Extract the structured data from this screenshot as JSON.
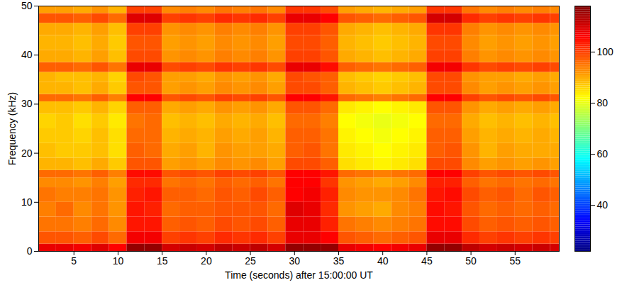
{
  "chart_data": {
    "type": "heatmap",
    "x_label": "Time (seconds) after 15:00:00 UT",
    "y_label": "Frequency (kHz)",
    "xlim": [
      1,
      60
    ],
    "xticks": [
      5,
      10,
      15,
      20,
      25,
      30,
      35,
      40,
      45,
      50,
      55
    ],
    "ylim": [
      0,
      50
    ],
    "yticks": [
      0,
      10,
      20,
      30,
      40,
      50
    ],
    "color": "jet",
    "time_bins": [
      1,
      3,
      5,
      7,
      9,
      11,
      13,
      15,
      17,
      19,
      21,
      23,
      25,
      27,
      29,
      31,
      33,
      35,
      37,
      39,
      41,
      43,
      45,
      47,
      49,
      51,
      53,
      55,
      57,
      59,
      60
    ],
    "frequency_bins": [
      0,
      1.5,
      4,
      7,
      10,
      13,
      15,
      16.5,
      19,
      22,
      25,
      28,
      30.5,
      32,
      34.5,
      36.5,
      38.5,
      41,
      44,
      46.5,
      48.5,
      50
    ],
    "values": [
      [
        108,
        108,
        107,
        109,
        106,
        116,
        116,
        110,
        111,
        110,
        112,
        111,
        112,
        110,
        116,
        116,
        116,
        108,
        107,
        106,
        107,
        108,
        116,
        116,
        112,
        110,
        111,
        110,
        111,
        110
      ],
      [
        98,
        98,
        97,
        99,
        96,
        107,
        107,
        100,
        101,
        100,
        102,
        101,
        102,
        100,
        108,
        108,
        106,
        98,
        97,
        96,
        97,
        98,
        108,
        108,
        102,
        100,
        101,
        100,
        101,
        100
      ],
      [
        95,
        95,
        94,
        96,
        93,
        104,
        104,
        97,
        98,
        97,
        99,
        98,
        99,
        97,
        108,
        108,
        103,
        95,
        94,
        93,
        94,
        95,
        105,
        105,
        99,
        97,
        98,
        97,
        98,
        97
      ],
      [
        94,
        96,
        93,
        95,
        92,
        104,
        103,
        96,
        97,
        97,
        98,
        98,
        98,
        96,
        109,
        108,
        102,
        92,
        91,
        90,
        93,
        94,
        105,
        104,
        98,
        96,
        97,
        96,
        97,
        96
      ],
      [
        95,
        94,
        94,
        95,
        92,
        103,
        104,
        97,
        97,
        96,
        98,
        97,
        99,
        97,
        106,
        107,
        103,
        93,
        92,
        92,
        93,
        95,
        104,
        105,
        99,
        97,
        98,
        96,
        98,
        97
      ],
      [
        93,
        93,
        92,
        94,
        91,
        102,
        102,
        95,
        96,
        95,
        97,
        96,
        97,
        95,
        106,
        106,
        101,
        92,
        91,
        90,
        91,
        93,
        103,
        103,
        97,
        95,
        96,
        95,
        96,
        95
      ],
      [
        96,
        96,
        95,
        97,
        94,
        105,
        105,
        98,
        99,
        98,
        100,
        99,
        100,
        98,
        106,
        106,
        104,
        96,
        95,
        94,
        95,
        96,
        106,
        106,
        100,
        98,
        99,
        98,
        99,
        98
      ],
      [
        89,
        89,
        88,
        90,
        87,
        98,
        98,
        91,
        92,
        91,
        93,
        92,
        93,
        91,
        99,
        99,
        97,
        85,
        84,
        83,
        84,
        85,
        99,
        99,
        93,
        91,
        92,
        91,
        92,
        91
      ],
      [
        88,
        87,
        87,
        88,
        85,
        97,
        96,
        90,
        91,
        89,
        92,
        91,
        91,
        90,
        97,
        98,
        95,
        84,
        83,
        82,
        83,
        84,
        97,
        98,
        92,
        89,
        91,
        90,
        90,
        90
      ],
      [
        87,
        87,
        86,
        88,
        85,
        96,
        96,
        89,
        90,
        89,
        91,
        90,
        91,
        89,
        97,
        97,
        95,
        83,
        82,
        81,
        82,
        83,
        97,
        97,
        91,
        89,
        90,
        89,
        90,
        89
      ],
      [
        86,
        87,
        85,
        87,
        84,
        95,
        96,
        88,
        89,
        88,
        90,
        89,
        90,
        88,
        96,
        96,
        94,
        82,
        81,
        80,
        81,
        82,
        96,
        96,
        90,
        88,
        89,
        88,
        89,
        88
      ],
      [
        88,
        88,
        87,
        89,
        86,
        97,
        97,
        90,
        91,
        90,
        92,
        91,
        92,
        90,
        98,
        98,
        96,
        84,
        83,
        82,
        83,
        84,
        98,
        98,
        92,
        90,
        91,
        90,
        91,
        90
      ],
      [
        96,
        96,
        95,
        97,
        94,
        106,
        106,
        98,
        99,
        98,
        100,
        99,
        100,
        98,
        106,
        106,
        104,
        96,
        95,
        94,
        95,
        96,
        106,
        106,
        100,
        98,
        99,
        98,
        99,
        98
      ],
      [
        89,
        89,
        88,
        90,
        87,
        98,
        98,
        91,
        92,
        91,
        93,
        92,
        93,
        91,
        99,
        99,
        97,
        89,
        88,
        87,
        88,
        89,
        99,
        99,
        93,
        91,
        92,
        91,
        92,
        91
      ],
      [
        89,
        88,
        88,
        89,
        86,
        99,
        98,
        91,
        91,
        90,
        92,
        91,
        92,
        90,
        99,
        98,
        97,
        88,
        87,
        86,
        87,
        88,
        99,
        99,
        92,
        91,
        91,
        90,
        91,
        90
      ],
      [
        97,
        97,
        96,
        98,
        95,
        108,
        108,
        99,
        100,
        99,
        101,
        100,
        101,
        99,
        108,
        108,
        105,
        97,
        96,
        95,
        96,
        97,
        107,
        107,
        101,
        99,
        100,
        99,
        100,
        99
      ],
      [
        90,
        90,
        89,
        91,
        88,
        99,
        99,
        92,
        93,
        92,
        94,
        93,
        94,
        92,
        100,
        100,
        98,
        90,
        89,
        88,
        89,
        90,
        100,
        100,
        94,
        92,
        93,
        92,
        93,
        92
      ],
      [
        89,
        89,
        88,
        90,
        87,
        98,
        98,
        91,
        92,
        91,
        93,
        92,
        93,
        91,
        99,
        99,
        97,
        89,
        88,
        87,
        88,
        89,
        99,
        99,
        93,
        91,
        92,
        91,
        92,
        91
      ],
      [
        90,
        90,
        89,
        91,
        88,
        100,
        100,
        92,
        93,
        92,
        94,
        93,
        94,
        92,
        100,
        100,
        98,
        90,
        89,
        88,
        89,
        90,
        101,
        101,
        94,
        92,
        93,
        92,
        93,
        92
      ],
      [
        98,
        98,
        97,
        99,
        96,
        109,
        109,
        100,
        101,
        100,
        102,
        101,
        102,
        100,
        108,
        108,
        106,
        98,
        97,
        96,
        97,
        98,
        110,
        110,
        102,
        100,
        101,
        100,
        101,
        100
      ],
      [
        91,
        91,
        90,
        92,
        89,
        100,
        100,
        93,
        94,
        93,
        95,
        94,
        95,
        93,
        101,
        101,
        99,
        91,
        90,
        89,
        90,
        91,
        101,
        101,
        95,
        93,
        94,
        93,
        94,
        93
      ]
    ],
    "colorbar": {
      "range": [
        22,
        118
      ],
      "ticks": [
        40,
        60,
        80,
        100
      ]
    }
  }
}
